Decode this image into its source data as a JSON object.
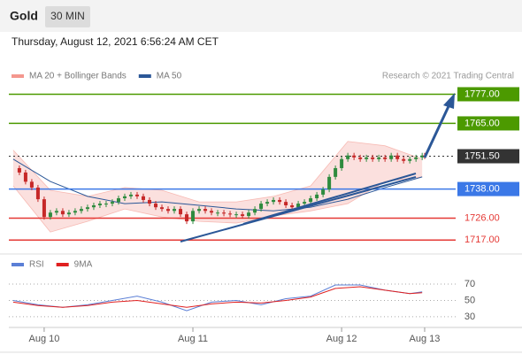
{
  "header": {
    "title": "Gold",
    "timeframe": "30 MIN",
    "datetime": "Thursday, August 12, 2021 6:56:24 AM CET"
  },
  "chart_data": [
    {
      "type": "candlestick",
      "credit": "Research © 2021 Trading Central",
      "x": [
        -5.4,
        -4,
        -3,
        -2,
        -1,
        0,
        1,
        2,
        3,
        4,
        5,
        6,
        7,
        8,
        9,
        10,
        11,
        12,
        13,
        14,
        15,
        16,
        17,
        18,
        19,
        20,
        21,
        22,
        23,
        24,
        25,
        26,
        27,
        28,
        29,
        30,
        31,
        32,
        33,
        34,
        35,
        36,
        37,
        38,
        39,
        40,
        41,
        42,
        43,
        44,
        45,
        46,
        47,
        48,
        49,
        50,
        51,
        52,
        53,
        54,
        55,
        56,
        57,
        58,
        59,
        60,
        61,
        61.4
      ],
      "close": [
        1746.6,
        1744.8,
        1741,
        1738.6,
        1733.8,
        1726.5,
        1728.3,
        1729,
        1727.6,
        1728.3,
        1729,
        1729.8,
        1730.5,
        1731.3,
        1732,
        1732,
        1732.7,
        1734.2,
        1735,
        1735.7,
        1735,
        1733.5,
        1732,
        1730.5,
        1729.8,
        1729,
        1729.8,
        1727.6,
        1724.7,
        1729,
        1729.8,
        1729,
        1728.3,
        1728.3,
        1727.9,
        1727.6,
        1727.6,
        1726.9,
        1728.3,
        1729.8,
        1732,
        1732.7,
        1733.5,
        1732.7,
        1731.3,
        1730.5,
        1732,
        1732.7,
        1734.2,
        1735.7,
        1737.8,
        1743,
        1746.6,
        1750.3,
        1751.8,
        1751,
        1750.3,
        1751,
        1750.3,
        1751,
        1750.3,
        1751.8,
        1750.3,
        1749.6,
        1750.3,
        1751,
        1751.8,
        1751.5
      ],
      "up_color": "#2e8b3e",
      "down_color": "#c62828",
      "series": [
        {
          "name": "MA 20 + Bollinger Bands",
          "color": "#f4978e",
          "fill": "#fbe0de",
          "x": [
            -5,
            1,
            7,
            13,
            19,
            25,
            31,
            37,
            43,
            49,
            55,
            61
          ],
          "upper": [
            1754,
            1737.5,
            1735,
            1738.6,
            1737.5,
            1732.7,
            1732.7,
            1735,
            1739.3,
            1757.6,
            1755.8,
            1750.3
          ],
          "lower": [
            1739.3,
            1720.3,
            1724.7,
            1729.8,
            1726.5,
            1724.7,
            1724,
            1726.9,
            1729,
            1732,
            1741.1,
            1743
          ]
        },
        {
          "name": "MA 50",
          "color": "#2b5797",
          "x": [
            -5,
            1,
            7,
            13,
            19,
            25,
            31,
            37,
            43,
            49,
            55,
            61
          ],
          "values": [
            1750.3,
            1741.1,
            1735,
            1732,
            1732.7,
            1731.3,
            1729.8,
            1729,
            1730.5,
            1733.8,
            1738.6,
            1743
          ]
        }
      ],
      "levels": [
        {
          "value": 1777,
          "label": "1777.00",
          "color": "#4c9a00",
          "boxed": true,
          "dashed": false
        },
        {
          "value": 1765,
          "label": "1765.00",
          "color": "#4c9a00",
          "boxed": true,
          "dashed": false
        },
        {
          "value": 1751.5,
          "label": "1751.50",
          "color": "#333333",
          "boxed": true,
          "dashed": true
        },
        {
          "value": 1738,
          "label": "1738.00",
          "color": "#3b78e7",
          "boxed": true,
          "dashed": false
        },
        {
          "value": 1726,
          "label": "1726.00",
          "color": "#e53935",
          "boxed": false,
          "dashed": false
        },
        {
          "value": 1717,
          "label": "1717.00",
          "color": "#e53935",
          "boxed": false,
          "dashed": false
        }
      ],
      "xlim": [
        -5.7,
        66.4
      ],
      "ylim": [
        1712,
        1783
      ],
      "xticks": [
        {
          "value": 0,
          "label": "Aug 10"
        },
        {
          "value": 24,
          "label": "Aug 11"
        },
        {
          "value": 48,
          "label": "Aug 12"
        },
        {
          "value": 61.4,
          "label": "Aug 13"
        }
      ]
    },
    {
      "type": "line",
      "x": [
        -5,
        -1,
        3,
        7,
        11,
        15,
        19,
        23,
        27,
        31,
        35,
        39,
        43,
        47,
        51,
        55,
        59,
        61
      ],
      "series": [
        {
          "name": "RSI",
          "color": "#5b7fd6",
          "values": [
            50,
            44.7,
            41.6,
            44.7,
            50,
            55.3,
            47.9,
            37.4,
            47.9,
            50,
            44.7,
            52.1,
            55.3,
            68.9,
            68.9,
            62.6,
            58.4,
            60.5
          ]
        },
        {
          "name": "9MA",
          "color": "#e02020",
          "values": [
            47.9,
            43.7,
            41.6,
            43.7,
            47.9,
            50,
            45.8,
            41.6,
            45.8,
            47.9,
            46.8,
            50,
            54.2,
            64.7,
            66.8,
            62.6,
            58.4,
            59.5
          ]
        }
      ],
      "xlim": [
        -5.7,
        66.4
      ],
      "ylim": [
        19,
        82
      ],
      "yticks": [
        30,
        50,
        70
      ]
    }
  ]
}
